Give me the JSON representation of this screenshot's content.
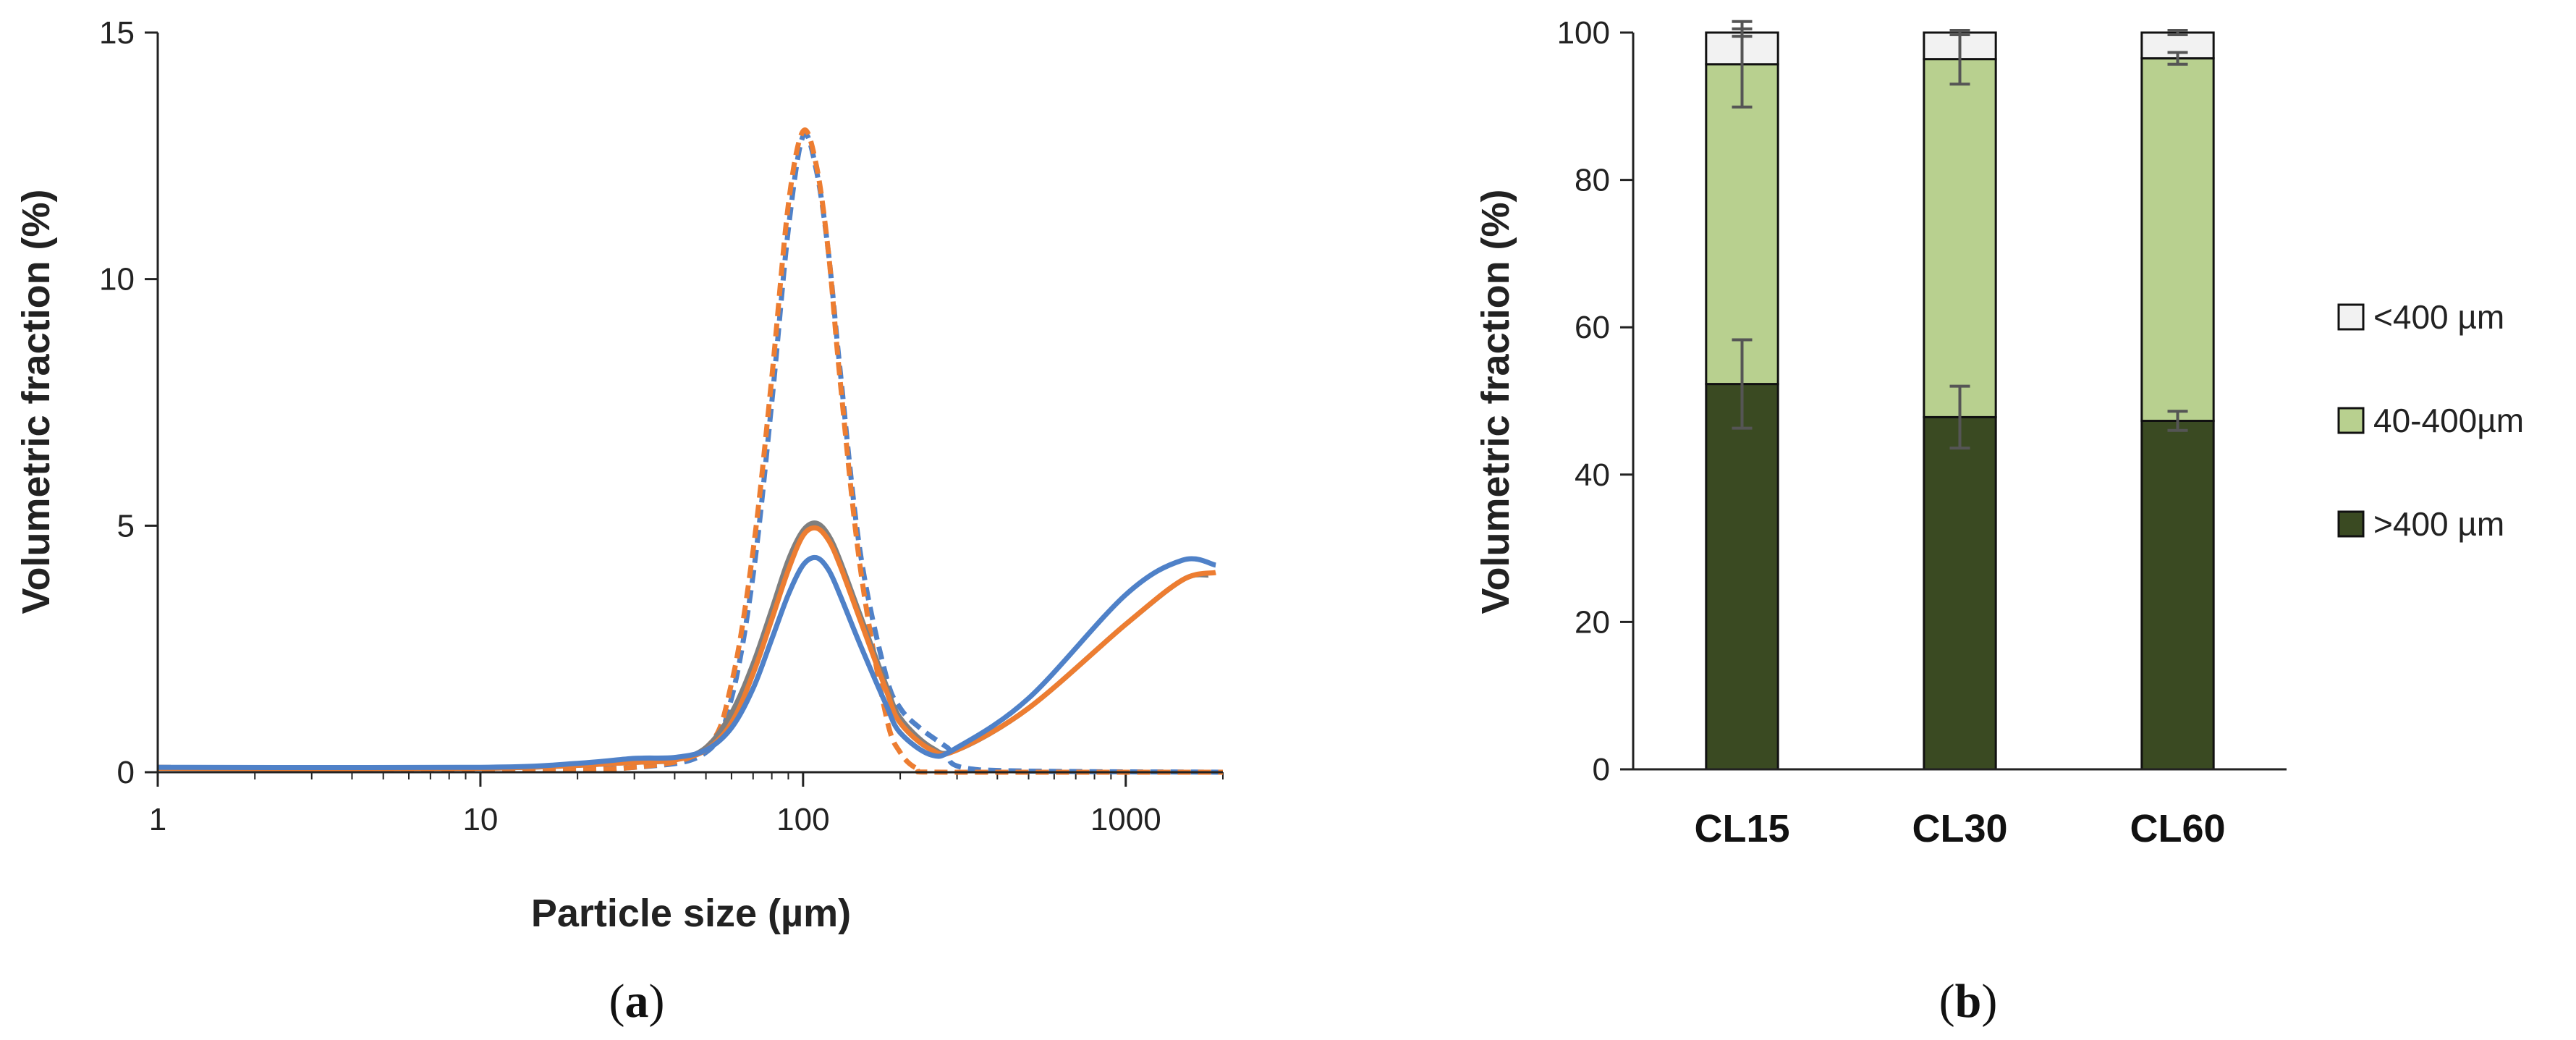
{
  "chart_data": [
    {
      "type": "line",
      "panel_label": "a",
      "title": "",
      "xlabel": "Particle size (µm)",
      "ylabel": "Volumetric fraction (%)",
      "xscale": "log",
      "xlim": [
        1,
        2000
      ],
      "ylim": [
        0,
        15
      ],
      "xticks": [
        1,
        10,
        100,
        1000
      ],
      "xtick_labels": [
        "1",
        "10",
        "100",
        "1000"
      ],
      "yticks": [
        0,
        5,
        10,
        15
      ],
      "ytick_labels": [
        "0",
        "5",
        "10",
        "15"
      ],
      "series": [
        {
          "name": "blue-dashed",
          "color": "#4F81C8",
          "dash": true,
          "x": [
            1,
            10,
            30,
            50,
            60,
            70,
            80,
            90,
            100,
            110,
            120,
            130,
            150,
            180,
            200,
            230,
            280,
            350,
            2000
          ],
          "y": [
            0.1,
            0.05,
            0.1,
            0.4,
            1.5,
            4.0,
            7.5,
            11.0,
            12.9,
            12.2,
            10.5,
            8.2,
            4.5,
            2.0,
            1.3,
            0.9,
            0.5,
            0.05,
            0.0
          ]
        },
        {
          "name": "orange-dashed",
          "color": "#ED7D31",
          "dash": true,
          "x": [
            1,
            10,
            30,
            50,
            60,
            70,
            80,
            90,
            100,
            110,
            120,
            130,
            150,
            180,
            200,
            230,
            280,
            2000
          ],
          "y": [
            0.1,
            0.05,
            0.1,
            0.5,
            1.8,
            4.5,
            8.0,
            11.5,
            13.0,
            12.3,
            10.5,
            8.0,
            4.2,
            1.2,
            0.4,
            0.05,
            0.0,
            0.0
          ]
        },
        {
          "name": "gray-solid",
          "color": "#7F7F7F",
          "dash": false,
          "x": [
            1,
            10,
            30,
            40,
            50,
            60,
            70,
            80,
            90,
            100,
            110,
            120,
            130,
            150,
            180,
            200,
            250,
            300,
            500,
            1000,
            1500,
            1800
          ],
          "y": [
            0.08,
            0.08,
            0.2,
            0.25,
            0.5,
            1.2,
            2.2,
            3.3,
            4.3,
            4.9,
            5.05,
            4.8,
            4.3,
            3.2,
            1.8,
            1.1,
            0.5,
            0.45,
            1.3,
            3.0,
            3.9,
            4.0
          ]
        },
        {
          "name": "orange-solid",
          "color": "#ED7D31",
          "dash": false,
          "x": [
            1,
            10,
            30,
            40,
            50,
            60,
            70,
            80,
            90,
            100,
            110,
            120,
            130,
            150,
            180,
            200,
            250,
            300,
            500,
            1000,
            1500,
            1900
          ],
          "y": [
            0.08,
            0.08,
            0.2,
            0.25,
            0.45,
            1.0,
            2.0,
            3.1,
            4.1,
            4.8,
            4.95,
            4.7,
            4.2,
            3.1,
            1.7,
            1.0,
            0.45,
            0.45,
            1.3,
            3.0,
            3.9,
            4.05
          ]
        },
        {
          "name": "blue-solid",
          "color": "#4F81C8",
          "dash": false,
          "x": [
            1,
            10,
            20,
            30,
            40,
            50,
            60,
            70,
            80,
            90,
            100,
            110,
            120,
            130,
            150,
            180,
            200,
            250,
            300,
            500,
            1000,
            1500,
            1900
          ],
          "y": [
            0.1,
            0.1,
            0.18,
            0.28,
            0.3,
            0.45,
            0.9,
            1.7,
            2.7,
            3.6,
            4.2,
            4.35,
            4.1,
            3.6,
            2.6,
            1.4,
            0.8,
            0.35,
            0.5,
            1.5,
            3.6,
            4.3,
            4.2
          ]
        }
      ]
    },
    {
      "type": "bar",
      "stacked": true,
      "panel_label": "b",
      "title": "",
      "xlabel": "",
      "ylabel": "Volumetric fraction (%)",
      "categories": [
        "CL15",
        "CL30",
        "CL60"
      ],
      "ylim": [
        0,
        100
      ],
      "yticks": [
        0,
        20,
        40,
        60,
        80,
        100
      ],
      "ytick_labels": [
        "0",
        "20",
        "40",
        "60",
        "80",
        "100"
      ],
      "legend_position": "right",
      "series": [
        {
          "name": ">400 µm",
          "color": "#3A4A22",
          "values": [
            52.3,
            47.8,
            47.3
          ],
          "err": [
            6.0,
            4.2,
            1.3
          ]
        },
        {
          "name": "40-400µm",
          "color": "#B8D08F",
          "values": [
            43.4,
            48.6,
            49.2
          ],
          "err": [
            5.8,
            3.4,
            0.8
          ]
        },
        {
          "name": "<400 µm",
          "color": "#F2F2F2",
          "values": [
            4.3,
            3.6,
            3.5
          ],
          "err": [
            0.5,
            0.3,
            0.3
          ]
        }
      ],
      "legend_order": [
        "<400 µm",
        "40-400µm",
        ">400 µm"
      ]
    }
  ]
}
